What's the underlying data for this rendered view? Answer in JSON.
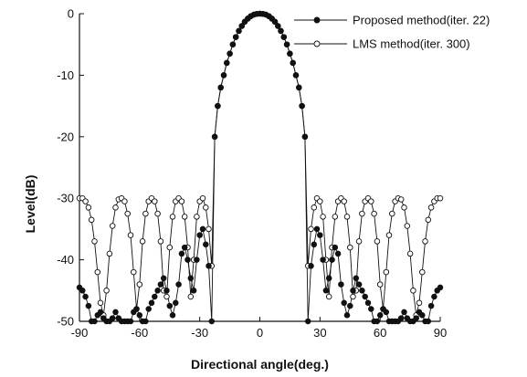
{
  "colors": {
    "ink": "#111111",
    "background": "#ffffff",
    "filled_marker": "#111111",
    "open_marker_fill": "#ffffff"
  },
  "chart_data": {
    "type": "line",
    "title": "",
    "xlabel": "Directional angle(deg.)",
    "ylabel": "Level(dB)",
    "xlim": [
      -90,
      90
    ],
    "ylim": [
      -50,
      0
    ],
    "x_ticks": [
      -90,
      -60,
      -30,
      0,
      30,
      60,
      90
    ],
    "y_ticks": [
      0,
      -10,
      -20,
      -30,
      -40,
      -50
    ],
    "grid": false,
    "legend_position": "top-right",
    "series": [
      {
        "name": "Proposed method(iter. 22)",
        "marker": "filled-circle",
        "x": [
          -90,
          -88.5,
          -87,
          -85.5,
          -84,
          -82.5,
          -81,
          -79.5,
          -78,
          -76.5,
          -75,
          -73.5,
          -72,
          -70.5,
          -69,
          -67.5,
          -66,
          -64.5,
          -63,
          -61.5,
          -60,
          -58.5,
          -57,
          -55.5,
          -54,
          -52.5,
          -51,
          -49.5,
          -48,
          -46.5,
          -45,
          -43.5,
          -42,
          -40.5,
          -39,
          -37.5,
          -36,
          -34.5,
          -33,
          -31.5,
          -30,
          -28.5,
          -27,
          -25.5,
          -24,
          -22.5,
          -21,
          -19.5,
          -18,
          -16.5,
          -15,
          -13.5,
          -12,
          -10.5,
          -9,
          -7.5,
          -6,
          -4.5,
          -3,
          -1.5,
          0,
          1.5,
          3,
          4.5,
          6,
          7.5,
          9,
          10.5,
          12,
          13.5,
          15,
          16.5,
          18,
          19.5,
          21,
          22.5,
          24,
          25.5,
          27,
          28.5,
          30,
          31.5,
          33,
          34.5,
          36,
          37.5,
          39,
          40.5,
          42,
          43.5,
          45,
          46.5,
          48,
          49.5,
          51,
          52.5,
          54,
          55.5,
          57,
          58.5,
          60,
          61.5,
          63,
          64.5,
          66,
          67.5,
          69,
          70.5,
          72,
          73.5,
          75,
          76.5,
          78,
          79.5,
          81,
          82.5,
          84,
          85.5,
          87,
          88.5,
          90
        ],
        "y": [
          -44.5,
          -45,
          -46,
          -47.5,
          -50,
          -50,
          -49,
          -48.5,
          -49.5,
          -50,
          -50,
          -49.5,
          -48.5,
          -49.5,
          -50,
          -50,
          -50,
          -50,
          -48.5,
          -48,
          -49,
          -50,
          -50,
          -48,
          -47,
          -46,
          -45,
          -44,
          -43,
          -45,
          -47.5,
          -49,
          -47,
          -44,
          -39,
          -38,
          -40,
          -43,
          -45,
          -40,
          -36,
          -35,
          -37.5,
          -41,
          -50,
          -20,
          -15,
          -12,
          -10,
          -8,
          -6.5,
          -5,
          -3.8,
          -2.8,
          -2,
          -1.3,
          -0.8,
          -0.4,
          -0.15,
          -0.03,
          0,
          -0.03,
          -0.15,
          -0.4,
          -0.8,
          -1.3,
          -2,
          -2.8,
          -3.8,
          -5,
          -6.5,
          -8,
          -10,
          -12,
          -15,
          -20,
          -50,
          -41,
          -37.5,
          -35,
          -36,
          -40,
          -45,
          -43,
          -40,
          -38,
          -39,
          -44,
          -47,
          -49,
          -47.5,
          -45,
          -43,
          -44,
          -45,
          -46,
          -47,
          -48,
          -50,
          -50,
          -49,
          -48,
          -48.5,
          -50,
          -50,
          -50,
          -50,
          -49.5,
          -48.5,
          -49.5,
          -50,
          -50,
          -49.5,
          -48.5,
          -49,
          -50,
          -50,
          -47.5,
          -46,
          -45,
          -44.5
        ]
      },
      {
        "name": "LMS method(iter. 300)",
        "marker": "open-circle",
        "x": [
          -90,
          -88.5,
          -87,
          -85.5,
          -84,
          -82.5,
          -81,
          -79.5,
          -78,
          -76.5,
          -75,
          -73.5,
          -72,
          -70.5,
          -69,
          -67.5,
          -66,
          -64.5,
          -63,
          -61.5,
          -60,
          -58.5,
          -57,
          -55.5,
          -54,
          -52.5,
          -51,
          -49.5,
          -48,
          -46.5,
          -45,
          -43.5,
          -42,
          -40.5,
          -39,
          -37.5,
          -36,
          -34.5,
          -33,
          -31.5,
          -30,
          -28.5,
          -27,
          -25.5,
          -24,
          -22.5,
          -21,
          -19.5,
          -18,
          -16.5,
          -15,
          -13.5,
          -12,
          -10.5,
          -9,
          -7.5,
          -6,
          -4.5,
          -3,
          -1.5,
          0,
          1.5,
          3,
          4.5,
          6,
          7.5,
          9,
          10.5,
          12,
          13.5,
          15,
          16.5,
          18,
          19.5,
          21,
          22.5,
          24,
          25.5,
          27,
          28.5,
          30,
          31.5,
          33,
          34.5,
          36,
          37.5,
          39,
          40.5,
          42,
          43.5,
          45,
          46.5,
          48,
          49.5,
          51,
          52.5,
          54,
          55.5,
          57,
          58.5,
          60,
          61.5,
          63,
          64.5,
          66,
          67.5,
          69,
          70.5,
          72,
          73.5,
          75,
          76.5,
          78,
          79.5,
          81,
          82.5,
          84,
          85.5,
          87,
          88.5,
          90
        ],
        "y": [
          -30,
          -30,
          -30.5,
          -31.5,
          -33.5,
          -37,
          -42,
          -47,
          -49,
          -45,
          -39,
          -34.5,
          -31.5,
          -30.2,
          -30,
          -30.5,
          -32.5,
          -36,
          -42,
          -48,
          -44,
          -37,
          -32.5,
          -30.5,
          -30,
          -30.5,
          -32.5,
          -37,
          -45,
          -46,
          -38,
          -33,
          -30.5,
          -30,
          -30.5,
          -33,
          -38,
          -46,
          -40,
          -33,
          -30.5,
          -30,
          -31.5,
          -35,
          -41,
          -20,
          -15,
          -12,
          -10,
          -8,
          -6.5,
          -5,
          -3.8,
          -2.8,
          -2,
          -1.3,
          -0.8,
          -0.4,
          -0.15,
          -0.03,
          0,
          -0.03,
          -0.15,
          -0.4,
          -0.8,
          -1.3,
          -2,
          -2.8,
          -3.8,
          -5,
          -6.5,
          -8,
          -10,
          -12,
          -15,
          -20,
          -41,
          -35,
          -31.5,
          -30,
          -30.5,
          -33,
          -40,
          -46,
          -38,
          -33,
          -30.5,
          -30,
          -30.5,
          -33,
          -38,
          -46,
          -45,
          -37,
          -32.5,
          -30.5,
          -30,
          -30.5,
          -32.5,
          -37,
          -44,
          -48,
          -42,
          -36,
          -32.5,
          -30.5,
          -30,
          -30.2,
          -31.5,
          -34.5,
          -39,
          -45,
          -49,
          -47,
          -42,
          -37,
          -33.5,
          -31.5,
          -30.5,
          -30,
          -30
        ]
      }
    ]
  }
}
